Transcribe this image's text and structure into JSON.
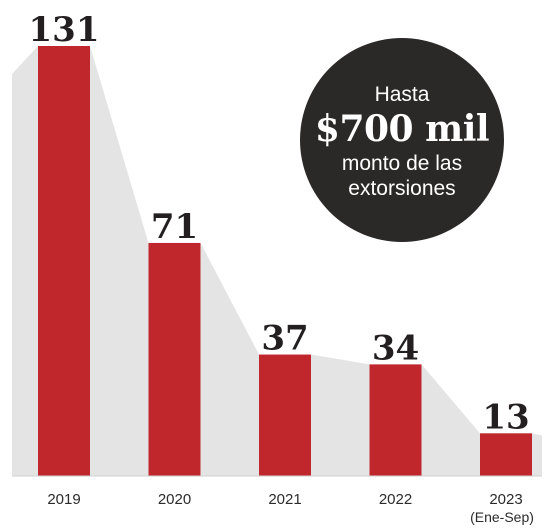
{
  "chart_data": {
    "type": "bar",
    "categories": [
      "2019",
      "2020",
      "2021",
      "2022",
      "2023"
    ],
    "category_sublabels": [
      "",
      "",
      "",
      "",
      "(Ene-Sep)"
    ],
    "values": [
      131,
      71,
      37,
      34,
      13
    ],
    "ylim": [
      0,
      131
    ],
    "grid": false,
    "legend": "none",
    "bar_color": "#c0272d",
    "trend_area_color": "#e4e4e4"
  },
  "callout": {
    "pre": "Hasta",
    "big": "$700 mil",
    "post_line1": "monto de las",
    "post_line2": "extorsiones"
  }
}
